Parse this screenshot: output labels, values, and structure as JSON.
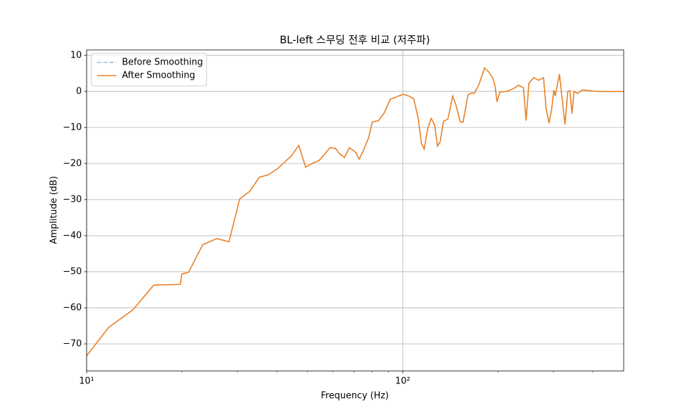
{
  "chart_data": {
    "type": "line",
    "title": "BL-left 스무딩 전후 비교 (저주파)",
    "x_label": "Frequency (Hz)",
    "y_label": "Amplitude (dB)",
    "x_scale": "log",
    "grid": true,
    "legend_position": "upper left",
    "xlim": [
      10,
      500
    ],
    "ylim": [
      -77.5,
      11.5
    ],
    "xticks": [
      {
        "value": 10,
        "label": "10¹"
      },
      {
        "value": 100,
        "label": "10²"
      }
    ],
    "xminorticks": [
      20,
      30,
      40,
      50,
      60,
      70,
      80,
      90,
      200,
      300,
      400
    ],
    "yticks": [
      10,
      0,
      {
        "value": -10,
        "label": "−10"
      },
      {
        "value": -20,
        "label": "−20"
      },
      {
        "value": -30,
        "label": "−30"
      },
      {
        "value": -40,
        "label": "−40"
      },
      {
        "value": -50,
        "label": "−50"
      },
      {
        "value": -60,
        "label": "−60"
      },
      {
        "value": -70,
        "label": "−70"
      }
    ],
    "x": [
      10,
      11.75,
      14.0,
      16.3,
      19.8,
      20.0,
      21.0,
      23.3,
      25.8,
      28.2,
      30.5,
      32.8,
      35.2,
      37.6,
      40.1,
      44.4,
      46.9,
      49.3,
      52.1,
      54.3,
      56.5,
      58.9,
      61.3,
      63.1,
      65.4,
      67.8,
      71.0,
      72.8,
      75.0,
      78.1,
      80.1,
      83.8,
      87.3,
      91.4,
      94.6,
      97.5,
      100.5,
      104.7,
      108.4,
      111.8,
      114.6,
      116.9,
      119.9,
      123.0,
      126.1,
      128.8,
      131.3,
      134.6,
      138.9,
      143.9,
      147.6,
      152.1,
      155.2,
      160.8,
      165.6,
      168.2,
      174.2,
      181.5,
      187.1,
      192.9,
      195.9,
      198.7,
      202.8,
      213.3,
      224.4,
      232.4,
      240.9,
      245.6,
      250.7,
      259.6,
      269.2,
      278.8,
      284.4,
      290.4,
      296.1,
      300.6,
      303.6,
      313.1,
      321.0,
      326.0,
      332.6,
      338.0,
      343.0,
      348.3,
      357.3,
      369.8,
      409.3,
      500
    ],
    "series": [
      {
        "name": "Before Smoothing",
        "color": "#8dc0e4",
        "dashed": true,
        "values": [
          -73.3,
          -65.4,
          -60.6,
          -53.7,
          -53.5,
          -50.6,
          -50.2,
          -42.5,
          -40.8,
          -41.7,
          -29.8,
          -27.7,
          -23.8,
          -23.1,
          -21.5,
          -17.9,
          -15.0,
          -21.0,
          -19.8,
          -19.2,
          -17.5,
          -15.6,
          -15.8,
          -17.3,
          -18.3,
          -15.6,
          -16.9,
          -18.8,
          -16.5,
          -12.7,
          -8.5,
          -8.1,
          -6.0,
          -2.1,
          -1.7,
          -1.2,
          -0.8,
          -1.3,
          -2.1,
          -7.3,
          -14.4,
          -16.0,
          -10.4,
          -7.5,
          -9.2,
          -15.2,
          -14.0,
          -8.3,
          -7.7,
          -1.3,
          -4.0,
          -8.5,
          -8.5,
          -1.0,
          -0.4,
          -0.6,
          1.9,
          6.5,
          5.4,
          3.7,
          1.5,
          -2.9,
          -0.2,
          0,
          0.8,
          1.7,
          1.0,
          -8.1,
          2.3,
          3.8,
          3.1,
          3.8,
          -5.0,
          -8.8,
          -4.6,
          0.4,
          -1.3,
          4.8,
          -3.8,
          -9.2,
          0,
          0.2,
          -6.2,
          0,
          -0.6,
          0.4,
          0,
          0
        ]
      },
      {
        "name": "After Smoothing",
        "color": "#f08224",
        "dashed": false,
        "values": [
          -73.3,
          -65.4,
          -60.6,
          -53.7,
          -53.5,
          -50.6,
          -50.2,
          -42.5,
          -40.8,
          -41.7,
          -29.8,
          -27.7,
          -23.8,
          -23.1,
          -21.5,
          -17.9,
          -15.0,
          -21.0,
          -19.8,
          -19.2,
          -17.5,
          -15.6,
          -15.8,
          -17.3,
          -18.3,
          -15.6,
          -16.9,
          -18.8,
          -16.5,
          -12.7,
          -8.5,
          -8.1,
          -6.0,
          -2.1,
          -1.7,
          -1.2,
          -0.8,
          -1.3,
          -2.1,
          -7.3,
          -14.4,
          -16.0,
          -10.4,
          -7.5,
          -9.2,
          -15.2,
          -14.0,
          -8.3,
          -7.7,
          -1.3,
          -4.0,
          -8.5,
          -8.5,
          -1.0,
          -0.4,
          -0.6,
          1.9,
          6.5,
          5.4,
          3.7,
          1.5,
          -2.9,
          -0.2,
          0,
          0.8,
          1.7,
          1.0,
          -8.1,
          2.3,
          3.8,
          3.1,
          3.8,
          -5.0,
          -8.8,
          -4.6,
          0.4,
          -1.3,
          4.8,
          -3.8,
          -9.2,
          0,
          0.2,
          -6.2,
          0,
          -0.6,
          0.4,
          0,
          0
        ]
      }
    ]
  }
}
